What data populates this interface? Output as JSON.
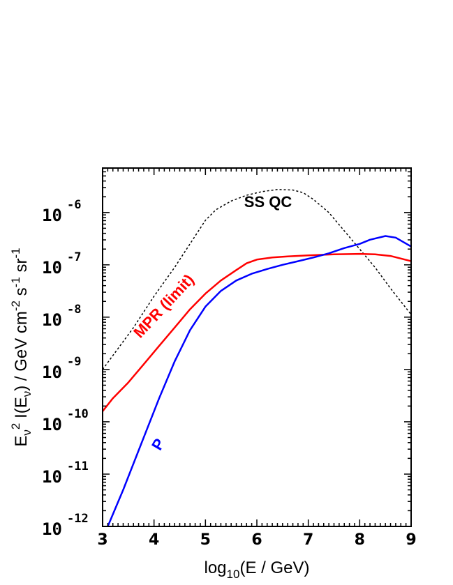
{
  "chart_data": {
    "type": "line",
    "xlabel": {
      "pre": "log",
      "sub": "10",
      "post": "(E / GeV)"
    },
    "ylabel": {
      "main1": "E",
      "sub1": "ν",
      "sup1": "2",
      "main2": " I(E",
      "sub2": "ν",
      "main3": ") / GeV cm",
      "sup2": "-2",
      "main4": " s",
      "sup3": "-1",
      "main5": " sr",
      "sup4": "-1"
    },
    "xlim": [
      3,
      9
    ],
    "ylim_log10": [
      -12,
      -5.15
    ],
    "y_scale": "log",
    "x_ticks": [
      "3",
      "4",
      "5",
      "6",
      "7",
      "8",
      "9"
    ],
    "y_ticks": [
      {
        "base": "10",
        "exp": "-12",
        "value": -12
      },
      {
        "base": "10",
        "exp": "-11",
        "value": -11
      },
      {
        "base": "10",
        "exp": "-10",
        "value": -10
      },
      {
        "base": "10",
        "exp": "-9",
        "value": -9
      },
      {
        "base": "10",
        "exp": "-8",
        "value": -8
      },
      {
        "base": "10",
        "exp": "-7",
        "value": -7
      },
      {
        "base": "10",
        "exp": "-6",
        "value": -6
      }
    ],
    "series": [
      {
        "name": "SS QC",
        "color": "#000000",
        "style": "dotted",
        "x": [
          3.0,
          3.3,
          3.6,
          4.0,
          4.4,
          4.8,
          5.0,
          5.2,
          5.5,
          5.8,
          6.1,
          6.4,
          6.7,
          6.9,
          7.1,
          7.4,
          7.7,
          8.0,
          8.3,
          8.6,
          9.0
        ],
        "y_log10": [
          -9.0,
          -8.6,
          -8.2,
          -7.6,
          -7.05,
          -6.45,
          -6.15,
          -5.95,
          -5.78,
          -5.67,
          -5.6,
          -5.56,
          -5.57,
          -5.62,
          -5.75,
          -6.0,
          -6.35,
          -6.7,
          -7.05,
          -7.45,
          -7.95
        ]
      },
      {
        "name": "MPR (limit)",
        "color": "#ff0000",
        "style": "solid",
        "x": [
          3.0,
          3.2,
          3.5,
          3.8,
          4.1,
          4.4,
          4.7,
          5.0,
          5.3,
          5.6,
          5.8,
          6.0,
          6.3,
          6.6,
          7.0,
          7.5,
          8.0,
          8.3,
          8.6,
          9.0
        ],
        "y_log10": [
          -9.8,
          -9.55,
          -9.25,
          -8.9,
          -8.55,
          -8.2,
          -7.85,
          -7.55,
          -7.3,
          -7.1,
          -6.97,
          -6.9,
          -6.86,
          -6.84,
          -6.82,
          -6.8,
          -6.79,
          -6.8,
          -6.83,
          -6.93
        ]
      },
      {
        "name": "P",
        "color": "#0000ff",
        "style": "solid",
        "x": [
          3.1,
          3.4,
          3.8,
          4.1,
          4.4,
          4.7,
          5.0,
          5.3,
          5.6,
          5.9,
          6.2,
          6.5,
          6.8,
          7.1,
          7.4,
          7.7,
          8.0,
          8.2,
          8.5,
          8.7,
          9.0
        ],
        "y_log10": [
          -12.0,
          -11.3,
          -10.3,
          -9.55,
          -8.85,
          -8.25,
          -7.8,
          -7.5,
          -7.3,
          -7.17,
          -7.08,
          -7.0,
          -6.93,
          -6.86,
          -6.78,
          -6.68,
          -6.6,
          -6.52,
          -6.45,
          -6.48,
          -6.65
        ]
      }
    ],
    "annotations": [
      {
        "text": "SS QC",
        "color": "#000000"
      },
      {
        "text": "MPR (limit)",
        "color": "#ff0000"
      },
      {
        "text": "P",
        "color": "#0000ff"
      }
    ]
  }
}
